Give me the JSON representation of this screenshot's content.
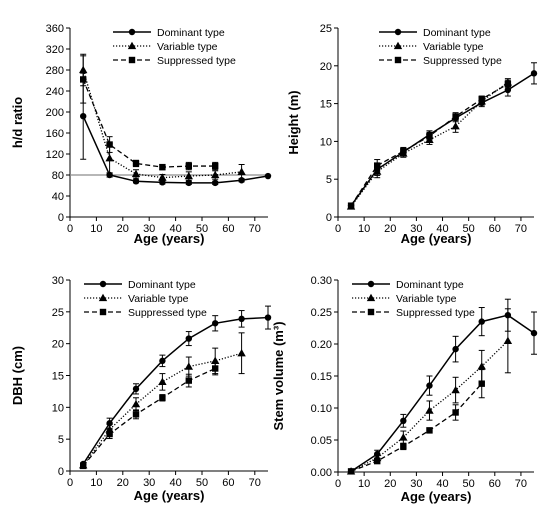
{
  "chart_data": [
    {
      "type": "line",
      "panel": "top-left",
      "xlabel": "Age (years)",
      "ylabel": "h/d ratio",
      "xlim": [
        0,
        75
      ],
      "ylim": [
        0,
        360
      ],
      "xticks": [
        0,
        10,
        20,
        30,
        40,
        50,
        60,
        70
      ],
      "yticks": [
        0,
        40,
        80,
        120,
        160,
        200,
        240,
        280,
        320,
        360
      ],
      "ytick_labels": [
        "0",
        "40",
        "80",
        "120",
        "160",
        "200",
        "240",
        "280",
        "320",
        "360"
      ],
      "reference_line": 80,
      "grid": false,
      "legend_position": "top-right",
      "series": [
        {
          "name": "Dominant type",
          "style": "solid",
          "marker": "circle",
          "x": [
            5,
            15,
            25,
            35,
            45,
            55,
            65,
            75
          ],
          "y": [
            192,
            80,
            68,
            66,
            65,
            65,
            70,
            78
          ],
          "err": [
            82,
            4,
            3,
            3,
            3,
            3,
            3,
            0
          ]
        },
        {
          "name": "Variable type",
          "style": "dotted",
          "marker": "triangle",
          "x": [
            5,
            15,
            25,
            35,
            45,
            55,
            65
          ],
          "y": [
            280,
            112,
            82,
            75,
            78,
            80,
            86
          ],
          "err": [
            30,
            28,
            8,
            6,
            8,
            8,
            14
          ]
        },
        {
          "name": "Suppressed type",
          "style": "dashed",
          "marker": "square",
          "x": [
            5,
            15,
            25,
            35,
            45,
            55
          ],
          "y": [
            262,
            138,
            102,
            95,
            97,
            97
          ],
          "err": [
            45,
            15,
            6,
            5,
            7,
            7
          ]
        }
      ]
    },
    {
      "type": "line",
      "panel": "top-right",
      "xlabel": "Age (years)",
      "ylabel": "Height (m)",
      "xlim": [
        0,
        75
      ],
      "ylim": [
        0,
        25
      ],
      "xticks": [
        0,
        10,
        20,
        30,
        40,
        50,
        60,
        70
      ],
      "yticks": [
        0,
        5,
        10,
        15,
        20,
        25
      ],
      "ytick_labels": [
        "0",
        "5",
        "10",
        "15",
        "20",
        "25"
      ],
      "grid": false,
      "legend_position": "top-right",
      "series": [
        {
          "name": "Dominant type",
          "style": "solid",
          "marker": "circle",
          "x": [
            5,
            15,
            25,
            35,
            45,
            55,
            65,
            75
          ],
          "y": [
            1.5,
            6.3,
            8.6,
            10.9,
            13.1,
            15.1,
            16.8,
            19.0
          ],
          "err": [
            0.2,
            0.8,
            0.5,
            0.5,
            0.5,
            0.5,
            0.8,
            1.4
          ]
        },
        {
          "name": "Variable type",
          "style": "dotted",
          "marker": "triangle",
          "x": [
            5,
            15,
            25,
            35,
            45,
            55,
            65
          ],
          "y": [
            1.4,
            6.0,
            8.4,
            10.2,
            12.0,
            15.3,
            17.8
          ],
          "err": [
            0.2,
            0.8,
            0.5,
            0.6,
            0.8,
            0.5,
            0.5
          ]
        },
        {
          "name": "Suppressed type",
          "style": "dashed",
          "marker": "square",
          "x": [
            5,
            15,
            25,
            35,
            45,
            55,
            65
          ],
          "y": [
            1.5,
            6.8,
            8.7,
            10.7,
            13.3,
            15.6,
            17.6
          ],
          "err": [
            0.2,
            0.8,
            0.5,
            0.5,
            0.5,
            0.4,
            0.5
          ]
        }
      ]
    },
    {
      "type": "line",
      "panel": "bottom-left",
      "xlabel": "Age (years)",
      "ylabel": "DBH (cm)",
      "xlim": [
        0,
        75
      ],
      "ylim": [
        0,
        30
      ],
      "xticks": [
        0,
        10,
        20,
        30,
        40,
        50,
        60,
        70
      ],
      "yticks": [
        0,
        5,
        10,
        15,
        20,
        25,
        30
      ],
      "ytick_labels": [
        "0",
        "5",
        "10",
        "15",
        "20",
        "25",
        "30"
      ],
      "grid": false,
      "legend_position": "top-left",
      "series": [
        {
          "name": "Dominant type",
          "style": "solid",
          "marker": "circle",
          "x": [
            5,
            15,
            25,
            35,
            45,
            55,
            65,
            75
          ],
          "y": [
            1.1,
            7.5,
            12.9,
            17.3,
            20.8,
            23.2,
            23.9,
            24.1
          ],
          "err": [
            0.2,
            0.8,
            0.8,
            0.9,
            1.1,
            1.2,
            1.3,
            1.8
          ]
        },
        {
          "name": "Variable type",
          "style": "dotted",
          "marker": "triangle",
          "x": [
            5,
            15,
            25,
            35,
            45,
            55,
            65
          ],
          "y": [
            0.9,
            6.5,
            10.5,
            14.0,
            16.4,
            17.3,
            18.5
          ],
          "err": [
            0.2,
            0.8,
            1.0,
            1.3,
            1.5,
            2.0,
            3.2
          ]
        },
        {
          "name": "Suppressed type",
          "style": "dashed",
          "marker": "square",
          "x": [
            5,
            15,
            25,
            35,
            45,
            55
          ],
          "y": [
            0.8,
            5.8,
            8.9,
            11.5,
            14.2,
            16.1
          ],
          "err": [
            0.2,
            0.7,
            0.7,
            0.5,
            1.0,
            1.0
          ]
        }
      ]
    },
    {
      "type": "line",
      "panel": "bottom-right",
      "xlabel": "Age (years)",
      "ylabel": "Stem volume (m³)",
      "xlim": [
        0,
        75
      ],
      "ylim": [
        0,
        0.3
      ],
      "xticks": [
        0,
        10,
        20,
        30,
        40,
        50,
        60,
        70
      ],
      "yticks": [
        0,
        0.05,
        0.1,
        0.15,
        0.2,
        0.25,
        0.3
      ],
      "ytick_labels": [
        "0.00",
        "0.05",
        "0.10",
        "0.15",
        "0.20",
        "0.25",
        "0.30"
      ],
      "grid": false,
      "legend_position": "top-left",
      "series": [
        {
          "name": "Dominant type",
          "style": "solid",
          "marker": "circle",
          "x": [
            5,
            15,
            25,
            35,
            45,
            55,
            65,
            75
          ],
          "y": [
            0.001,
            0.028,
            0.08,
            0.135,
            0.192,
            0.235,
            0.245,
            0.217
          ],
          "err": [
            0.001,
            0.006,
            0.01,
            0.015,
            0.02,
            0.022,
            0.025,
            0.033
          ]
        },
        {
          "name": "Variable type",
          "style": "dotted",
          "marker": "triangle",
          "x": [
            5,
            15,
            25,
            35,
            45,
            55,
            65
          ],
          "y": [
            0.001,
            0.022,
            0.054,
            0.096,
            0.128,
            0.165,
            0.205
          ],
          "err": [
            0.001,
            0.005,
            0.01,
            0.015,
            0.02,
            0.025,
            0.05
          ]
        },
        {
          "name": "Suppressed type",
          "style": "dashed",
          "marker": "square",
          "x": [
            5,
            15,
            25,
            35,
            45,
            55
          ],
          "y": [
            0.001,
            0.017,
            0.04,
            0.065,
            0.093,
            0.138
          ],
          "err": [
            0.001,
            0.003,
            0.005,
            0.004,
            0.012,
            0.022
          ]
        }
      ]
    }
  ]
}
